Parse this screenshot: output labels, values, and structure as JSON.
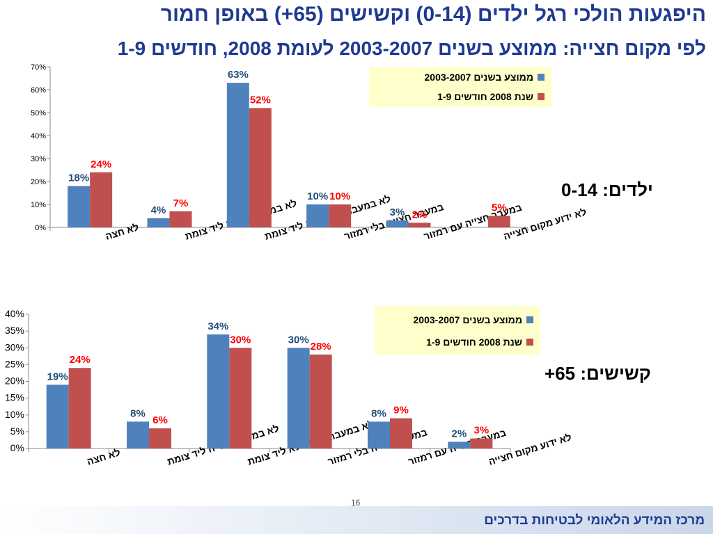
{
  "slide": {
    "title_line1": "היפגעות הולכי רגל ילדים (0-14) וקשישים (65+) באופן חמור",
    "title_line2": "לפי מקום חצייה: ממוצע בשנים 2003-2007 לעומת 2008, חודשים 1-9",
    "page_number": "16",
    "footer": "מרכז המידע הלאומי לבטיחות בדרכים"
  },
  "colors": {
    "title": "#1f3a93",
    "series1": "#4f81bd",
    "series2": "#c0504d",
    "legend_bg": "#ffffcc",
    "label1": "#1f4e79",
    "label2": "#ff0000"
  },
  "chart_data": [
    {
      "type": "bar",
      "side_label": "ילדים: 0-14",
      "categories": [
        "לא חצה",
        "לא במעבר חצייה ליד צומת",
        "לא במעבר חצייה לא ליד צומת",
        "במעבר חצייה בלי רמזור",
        "במעבר חצייה עם רמזור",
        "לא ידוע מקום חצייה"
      ],
      "series": [
        {
          "name": "ממוצע בשנים 2003-2007",
          "values": [
            18,
            4,
            63,
            10,
            3,
            0
          ],
          "labels": [
            "18%",
            "4%",
            "63%",
            "10%",
            "3%",
            ""
          ]
        },
        {
          "name": "שנת 2008 חודשים 1-9",
          "values": [
            24,
            7,
            52,
            10,
            2,
            5
          ],
          "labels": [
            "24%",
            "7%",
            "52%",
            "10%",
            "2%",
            "5%"
          ]
        }
      ],
      "ylim": [
        0,
        70
      ],
      "yticks": [
        "0%",
        "10%",
        "20%",
        "30%",
        "40%",
        "50%",
        "60%",
        "70%"
      ],
      "grid": false,
      "legend_position": "top-right"
    },
    {
      "type": "bar",
      "side_label": "קשישים: 65+",
      "categories": [
        "לא חצה",
        "לא במעבר חצייה ליד צומת",
        "לא במעבר חצייה לא ליד צומת",
        "במעבר חצייה בלי רמזור",
        "במעבר חצייה עם רמזור",
        "לא ידוע מקום חצייה"
      ],
      "series": [
        {
          "name": "ממוצע בשנים 2003-2007",
          "values": [
            19,
            8,
            34,
            30,
            8,
            2
          ],
          "labels": [
            "19%",
            "8%",
            "34%",
            "30%",
            "8%",
            "2%"
          ]
        },
        {
          "name": "שנת 2008 חודשים 1-9",
          "values": [
            24,
            6,
            30,
            28,
            9,
            3
          ],
          "labels": [
            "24%",
            "6%",
            "30%",
            "28%",
            "9%",
            "3%"
          ]
        }
      ],
      "ylim": [
        0,
        40
      ],
      "yticks": [
        "0%",
        "5%",
        "10%",
        "15%",
        "20%",
        "25%",
        "30%",
        "35%",
        "40%"
      ],
      "grid": false,
      "legend_position": "top-right"
    }
  ]
}
